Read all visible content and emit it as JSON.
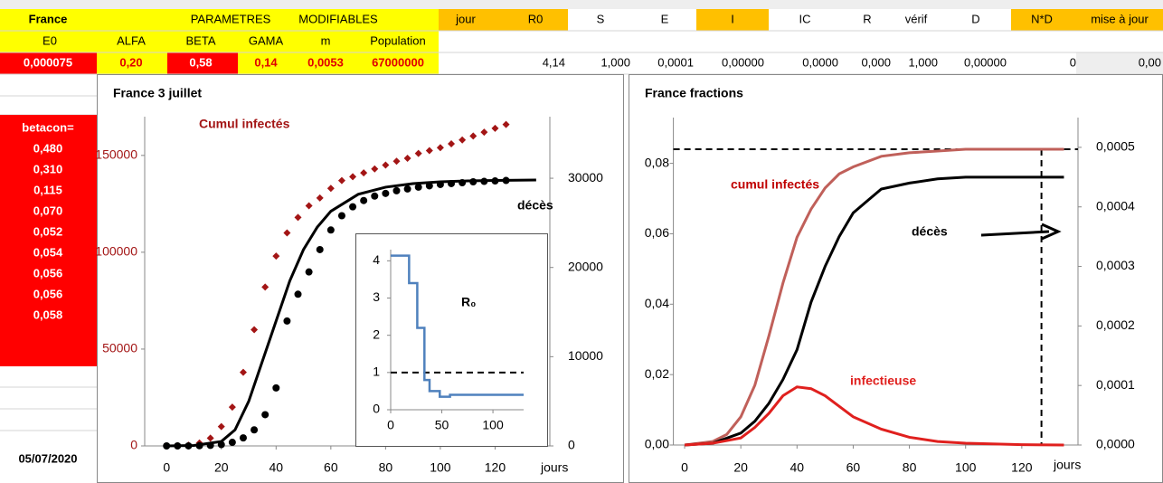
{
  "sheet": {
    "row1": [
      "France",
      "PARAMETRES",
      "MODIFIABLES",
      "jour",
      "R0",
      "S",
      "E",
      "I",
      "IC",
      "R",
      "vérif",
      "D",
      "N*D",
      "mise à jour"
    ],
    "row2": [
      "E0",
      "ALFA",
      "BETA",
      "GAMA",
      "m",
      "Population"
    ],
    "row3": [
      "0,000075",
      "0,20",
      "0,58",
      "0,14",
      "0,0053",
      "67000000",
      "4,14",
      "1,000",
      "0,0001",
      "0,00000",
      "0,0000",
      "0,000",
      "1,000",
      "0,00000",
      "0",
      "0,00"
    ],
    "betacon_label": "betacon=",
    "betacon": [
      "0,480",
      "0,310",
      "0,115",
      "0,070",
      "0,052",
      "0,054",
      "0,056",
      "0,056",
      "0,058"
    ],
    "date": "05/07/2020"
  },
  "chart_data": [
    {
      "type": "scatter",
      "title": "France 3 juillet",
      "xlabel": "jours",
      "xlim": [
        -8,
        140
      ],
      "xticks": [
        0,
        20,
        40,
        60,
        80,
        100,
        120
      ],
      "ylim": [
        0,
        170000
      ],
      "yticks": [
        0,
        50000,
        100000,
        150000
      ],
      "y2lim": [
        0,
        36900
      ],
      "y2ticks": [
        0,
        10000,
        20000,
        30000
      ],
      "series": [
        {
          "name": "Cumul infectés",
          "color": "#a31515",
          "marker": "diamond",
          "x": [
            0,
            4,
            8,
            12,
            16,
            20,
            24,
            28,
            32,
            36,
            40,
            44,
            48,
            52,
            56,
            60,
            64,
            68,
            72,
            76,
            80,
            84,
            88,
            92,
            96,
            100,
            104,
            108,
            112,
            116,
            120,
            124
          ],
          "values": [
            0,
            100,
            400,
            1500,
            4000,
            10000,
            20000,
            38000,
            60000,
            82000,
            98000,
            110000,
            118000,
            124000,
            128000,
            133000,
            137000,
            139000,
            141000,
            143000,
            145000,
            147000,
            148500,
            151000,
            152500,
            154000,
            156000,
            158000,
            160000,
            162000,
            164000,
            166000
          ]
        },
        {
          "name": "décès",
          "color": "#000000",
          "marker": "circle",
          "axis": "y2",
          "x": [
            0,
            4,
            8,
            12,
            16,
            20,
            24,
            28,
            32,
            36,
            40,
            44,
            48,
            52,
            56,
            60,
            64,
            68,
            72,
            76,
            80,
            84,
            88,
            92,
            96,
            100,
            104,
            108,
            112,
            116,
            120,
            124
          ],
          "values": [
            0,
            0,
            5,
            20,
            60,
            150,
            400,
            900,
            1800,
            3500,
            6500,
            14000,
            17000,
            19500,
            22000,
            24200,
            25800,
            26800,
            27500,
            28000,
            28300,
            28600,
            28800,
            29000,
            29150,
            29300,
            29400,
            29500,
            29600,
            29650,
            29700,
            29750
          ]
        },
        {
          "color": "#000000",
          "marker": "line",
          "axis": "y2",
          "x": [
            0,
            10,
            20,
            25,
            30,
            35,
            40,
            45,
            50,
            55,
            60,
            70,
            80,
            90,
            100,
            110,
            120,
            135
          ],
          "values": [
            0,
            50,
            500,
            1800,
            5000,
            9500,
            14000,
            18500,
            22000,
            24500,
            26300,
            28200,
            29000,
            29400,
            29600,
            29700,
            29750,
            29800
          ]
        }
      ]
    },
    {
      "type": "line",
      "title": "France   fractions",
      "xlabel": "jours",
      "xlim": [
        -4,
        140
      ],
      "xticks": [
        0,
        20,
        40,
        60,
        80,
        100,
        120
      ],
      "ylim": [
        0,
        0.093
      ],
      "yticks": [
        {
          "value": 0,
          "label": "0,00"
        },
        {
          "value": 0.02,
          "label": "0,02"
        },
        {
          "value": 0.04,
          "label": "0,04"
        },
        {
          "value": 0.06,
          "label": "0,06"
        },
        {
          "value": 0.08,
          "label": "0,08"
        }
      ],
      "y2lim": [
        0,
        0.00055
      ],
      "y2ticks": [
        {
          "value": 0,
          "label": "0,0000"
        },
        {
          "value": 0.0001,
          "label": "0,0001"
        },
        {
          "value": 0.0002,
          "label": "0,0002"
        },
        {
          "value": 0.0003,
          "label": "0,0003"
        },
        {
          "value": 0.0004,
          "label": "0,0004"
        },
        {
          "value": 0.0005,
          "label": "0,0005"
        }
      ],
      "hlines": [
        0.084
      ],
      "vlines": [
        127
      ],
      "series": [
        {
          "name": "cumul infectés",
          "color": "#c0605a",
          "marker": "line",
          "x": [
            0,
            10,
            15,
            20,
            25,
            30,
            35,
            40,
            45,
            50,
            55,
            60,
            70,
            80,
            90,
            100,
            120,
            135
          ],
          "values": [
            0,
            0.001,
            0.003,
            0.008,
            0.017,
            0.031,
            0.046,
            0.059,
            0.067,
            0.073,
            0.077,
            0.079,
            0.082,
            0.083,
            0.0835,
            0.084,
            0.084,
            0.084
          ]
        },
        {
          "name": "décès",
          "color": "#000000",
          "marker": "line",
          "axis": "y2",
          "x": [
            0,
            10,
            20,
            25,
            30,
            35,
            40,
            45,
            50,
            55,
            60,
            65,
            70,
            80,
            90,
            100,
            120,
            135
          ],
          "values": [
            0,
            3e-06,
            2e-05,
            4e-05,
            7e-05,
            0.00011,
            0.00016,
            0.00024,
            0.0003,
            0.00035,
            0.00039,
            0.00041,
            0.00043,
            0.00044,
            0.000447,
            0.00045,
            0.00045,
            0.00045
          ]
        },
        {
          "name": "infectieuse",
          "color": "#e0201e",
          "marker": "line",
          "x": [
            0,
            10,
            20,
            25,
            30,
            35,
            40,
            45,
            50,
            55,
            60,
            70,
            80,
            90,
            100,
            120,
            135
          ],
          "values": [
            0,
            0.0005,
            0.002,
            0.005,
            0.009,
            0.014,
            0.0165,
            0.016,
            0.014,
            0.011,
            0.008,
            0.0045,
            0.0022,
            0.001,
            0.0005,
            0.0001,
            0
          ]
        }
      ]
    },
    {
      "type": "line",
      "title": "R₀",
      "step": true,
      "xlim": [
        0,
        130
      ],
      "xticks": [
        0,
        50,
        100
      ],
      "ylim": [
        0,
        4.3
      ],
      "yticks": [
        0,
        1,
        2,
        3,
        4
      ],
      "hlines": [
        1
      ],
      "series": [
        {
          "color": "#4f81bd",
          "marker": "line",
          "x": [
            0,
            18,
            26,
            33,
            38,
            48,
            58,
            130
          ],
          "values": [
            4.14,
            3.4,
            2.2,
            0.8,
            0.5,
            0.35,
            0.4,
            0.4
          ]
        }
      ]
    }
  ]
}
